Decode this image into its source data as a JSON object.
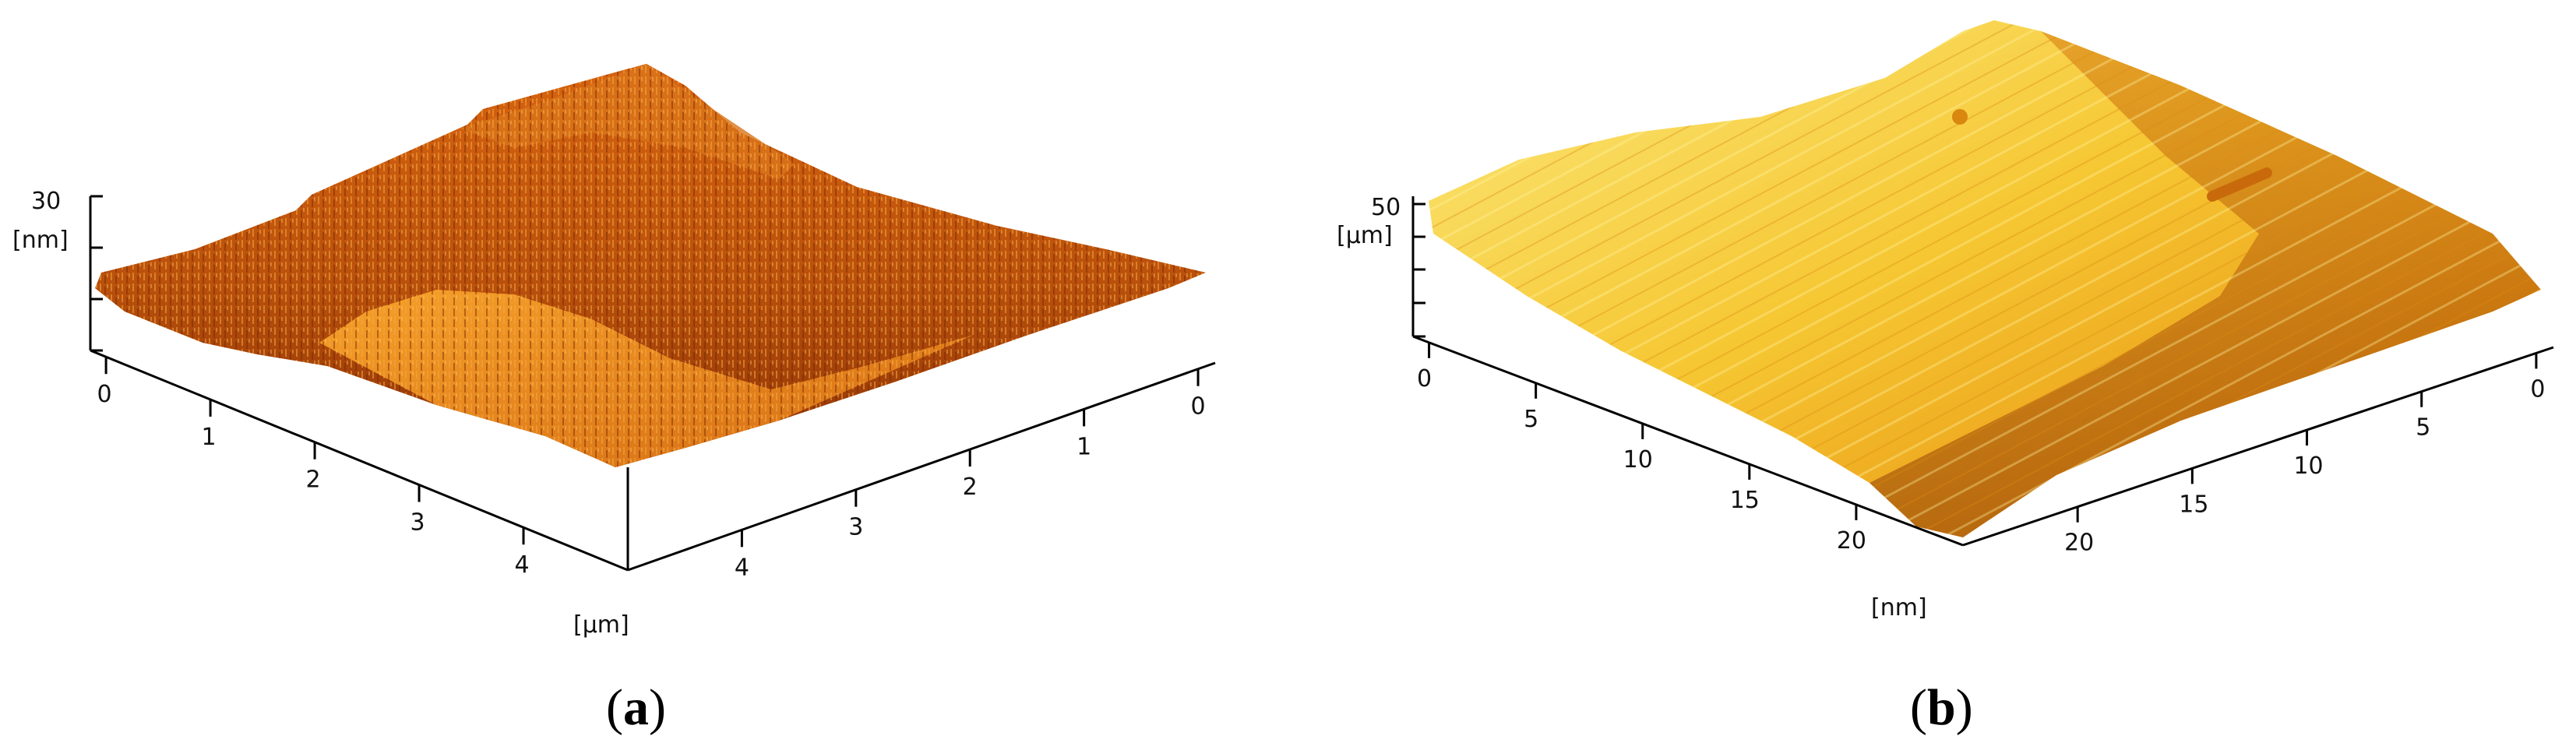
{
  "chart_data": [
    {
      "id": "a",
      "type": "surface3d",
      "caption_letter": "a",
      "z_range": [
        0,
        30
      ],
      "z_ticks": [
        "30"
      ],
      "z_unit": "[nm]",
      "x_ticks": [
        "0",
        "1",
        "2",
        "3",
        "4"
      ],
      "y_ticks": [
        "0",
        "1",
        "2",
        "3",
        "4"
      ],
      "xy_unit": "[µm]",
      "colors": {
        "dark": "#7a2606",
        "mid": "#c4560c",
        "light": "#f29a20",
        "highlight": "#ffc13a"
      }
    },
    {
      "id": "b",
      "type": "surface3d",
      "caption_letter": "b",
      "z_range": [
        0,
        50
      ],
      "z_ticks": [
        "50"
      ],
      "z_unit": "[µm]",
      "x_ticks": [
        "0",
        "5",
        "10",
        "15",
        "20"
      ],
      "y_ticks": [
        "0",
        "5",
        "10",
        "15",
        "20"
      ],
      "xy_unit": "[nm]",
      "colors": {
        "dark": "#8c3a04",
        "mid": "#e08a10",
        "light": "#fbd84a",
        "highlight": "#fff09a"
      }
    }
  ]
}
